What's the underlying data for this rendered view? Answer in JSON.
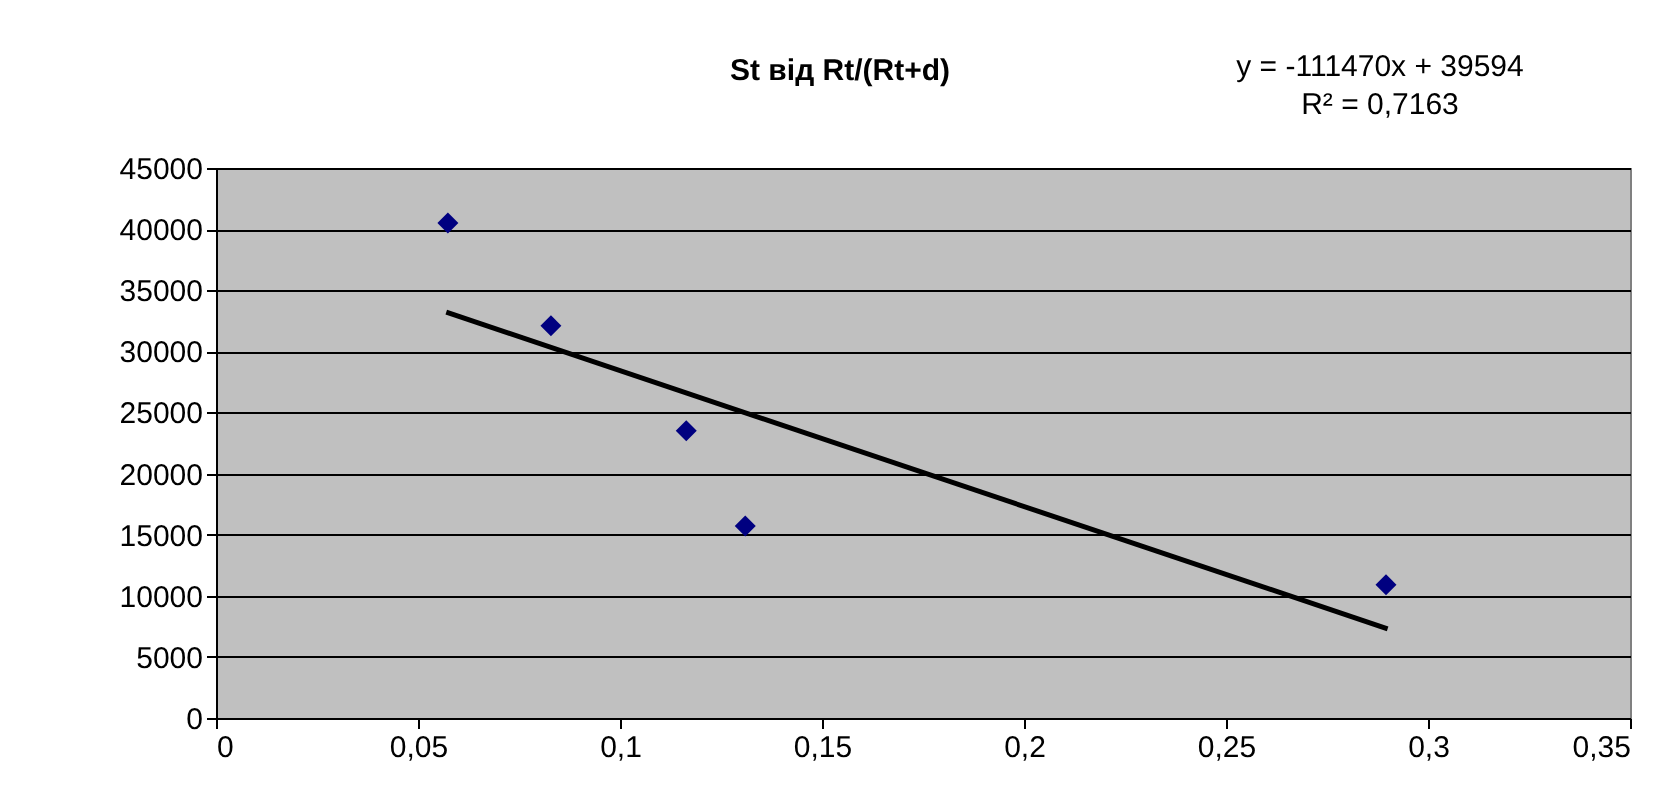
{
  "chart_data": {
    "type": "scatter",
    "title": "St від Rt/(Rt+d)",
    "annotations": [
      "y = -111470x + 39594",
      "R² = 0,7163"
    ],
    "series": [
      {
        "color": "#000080",
        "x": [
          0.0574,
          0.0829,
          0.1164,
          0.131,
          0.2896
        ],
        "values": [
          40500,
          32100,
          23500,
          15700,
          10900
        ]
      },
      {
        "type": "line",
        "marker": "none",
        "color": "#000000",
        "x": [
          0.057,
          0.29
        ],
        "values": [
          33200,
          7300
        ]
      }
    ],
    "xlim": [
      0,
      0.35
    ],
    "xticks": [
      0,
      {
        "value": 0.05,
        "label": "0,05"
      },
      {
        "value": 0.1,
        "label": "0,1"
      },
      {
        "value": 0.15,
        "label": "0,15"
      },
      {
        "value": 0.2,
        "label": "0,2"
      },
      {
        "value": 0.25,
        "label": "0,25"
      },
      {
        "value": 0.3,
        "label": "0,3"
      },
      {
        "value": 0.35,
        "label": "0,35"
      }
    ],
    "ylim": [
      0,
      45000
    ],
    "yticks": [
      0,
      5000,
      10000,
      15000,
      20000,
      25000,
      30000,
      35000,
      40000,
      45000
    ],
    "grid": "y",
    "marker": "diamond",
    "line_style": "solid"
  }
}
